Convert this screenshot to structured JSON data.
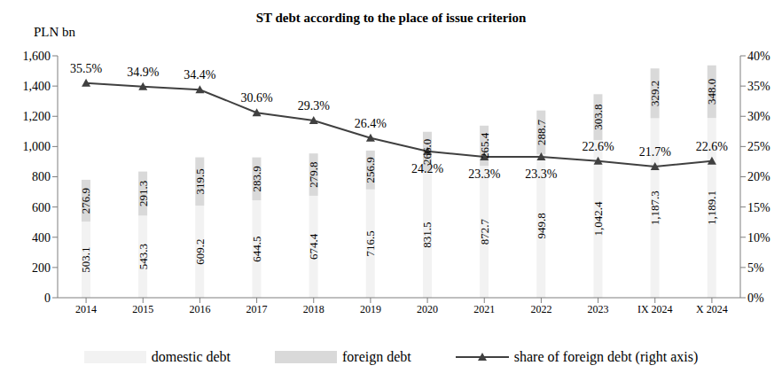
{
  "chart_data": {
    "type": "bar",
    "title": "ST debt according to the place of issue criterion",
    "y_label": "PLN bn",
    "categories": [
      "2014",
      "2015",
      "2016",
      "2017",
      "2018",
      "2019",
      "2020",
      "2021",
      "2022",
      "2023",
      "IX 2024",
      "X 2024"
    ],
    "stacked": true,
    "data_labels": true,
    "grid": false,
    "legend": "bottom",
    "ylim": [
      0,
      1600
    ],
    "yticks": [
      0,
      200,
      400,
      600,
      800,
      {
        "value": 1000,
        "label": "1,000"
      },
      {
        "value": 1200,
        "label": "1,200"
      },
      {
        "value": 1400,
        "label": "1,400"
      },
      {
        "value": 1600,
        "label": "1,600"
      }
    ],
    "y2lim": [
      0,
      40
    ],
    "y2ticks": [
      {
        "value": 0,
        "label": "0%"
      },
      {
        "value": 5,
        "label": "5%"
      },
      {
        "value": 10,
        "label": "10%"
      },
      {
        "value": 15,
        "label": "15%"
      },
      {
        "value": 20,
        "label": "20%"
      },
      {
        "value": 25,
        "label": "25%"
      },
      {
        "value": 30,
        "label": "30%"
      },
      {
        "value": 35,
        "label": "35%"
      },
      {
        "value": 40,
        "label": "40%"
      }
    ],
    "series": [
      {
        "name": "domestic debt",
        "color": "#f2f2f2",
        "values": [
          503.1,
          543.3,
          609.2,
          644.5,
          674.4,
          716.5,
          831.5,
          872.7,
          949.8,
          1042.4,
          1187.3,
          1189.1
        ],
        "value_labels": [
          "503.1",
          "543.3",
          "609.2",
          "644.5",
          "674.4",
          "716.5",
          "831.5",
          "872.7",
          "949.8",
          "1,042.4",
          "1,187.3",
          "1,189.1"
        ]
      },
      {
        "name": "foreign debt",
        "color": "#d9d9d9",
        "values": [
          276.9,
          291.3,
          319.5,
          283.9,
          279.8,
          256.9,
          266.0,
          265.4,
          288.7,
          303.8,
          329.2,
          348.0
        ],
        "value_labels": [
          "276.9",
          "291.3",
          "319.5",
          "283.9",
          "279.8",
          "256.9",
          "266.0",
          "265.4",
          "288.7",
          "303.8",
          "329.2",
          "348.0"
        ]
      },
      {
        "name": "share of foreign debt (right axis)",
        "type": "line",
        "axis": "y2",
        "color": "#404040",
        "marker": "triangle",
        "values": [
          35.5,
          34.9,
          34.4,
          30.6,
          29.3,
          26.4,
          24.2,
          23.3,
          23.3,
          22.6,
          21.7,
          22.6
        ],
        "value_labels": [
          "35.5%",
          "34.9%",
          "34.4%",
          "30.6%",
          "29.3%",
          "26.4%",
          "24.2%",
          "23.3%",
          "23.3%",
          "22.6%",
          "21.7%",
          "22.6%"
        ]
      }
    ]
  }
}
